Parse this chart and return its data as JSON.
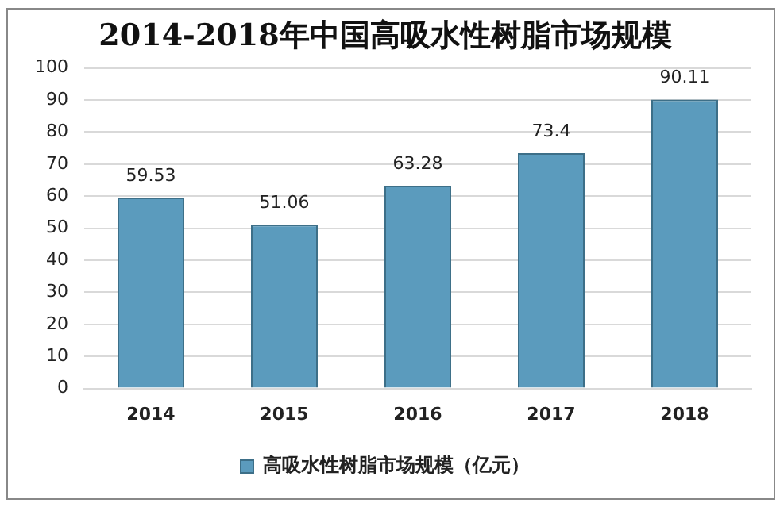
{
  "chart_data": {
    "type": "bar",
    "title": "2014-2018年中国高吸水性树脂市场规模",
    "categories": [
      "2014",
      "2015",
      "2016",
      "2017",
      "2018"
    ],
    "series": [
      {
        "name": "高吸水性树脂市场规模（亿元）",
        "color": "#5b9bbd",
        "values": [
          59.53,
          51.06,
          63.28,
          73.4,
          90.11
        ]
      }
    ],
    "ylim": [
      0,
      100
    ],
    "yticks": [
      0,
      10,
      20,
      30,
      40,
      50,
      60,
      70,
      80,
      90,
      100
    ],
    "grid": "y",
    "legend": "bottom",
    "data_labels": true
  }
}
